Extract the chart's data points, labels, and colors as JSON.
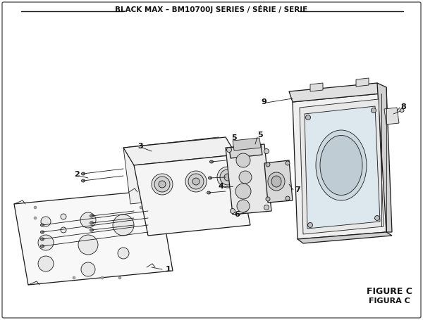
{
  "title": "BLACK MAX – BM10700J SERIES / SÉRIE / SERIE",
  "figure_label": "FIGURE C",
  "figura_label": "FIGURA C",
  "bg_color": "#ffffff",
  "line_color": "#1a1a1a",
  "figsize": [
    6.0,
    4.55
  ],
  "dpi": 100
}
